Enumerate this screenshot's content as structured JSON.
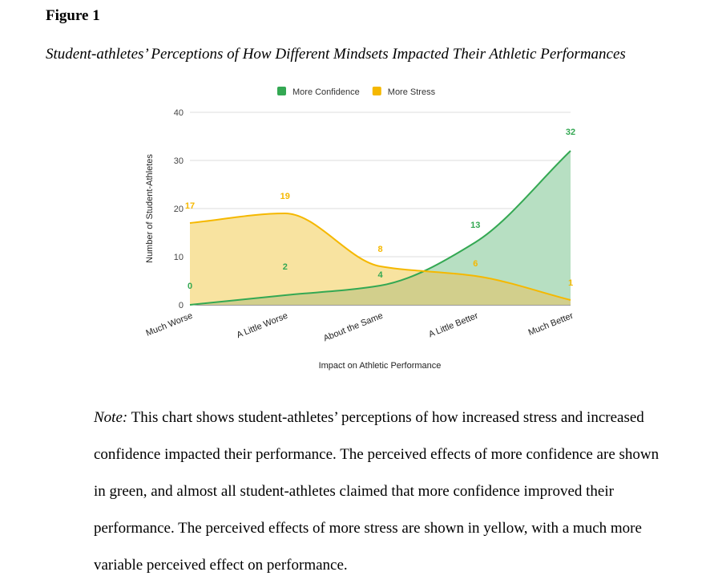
{
  "figure": {
    "label": "Figure 1",
    "title": "Student-athletes’ Perceptions of How Different Mindsets Impacted Their Athletic Performances"
  },
  "chart_data": {
    "type": "area",
    "categories": [
      "Much Worse",
      "A Little Worse",
      "About the Same",
      "A Little Better",
      "Much Better"
    ],
    "series": [
      {
        "name": "More Confidence",
        "values": [
          0,
          2,
          4,
          13,
          32
        ],
        "color": "#34a853",
        "fill": "#b7dfc2"
      },
      {
        "name": "More Stress",
        "values": [
          17,
          19,
          8,
          6,
          1
        ],
        "color": "#f5b800",
        "fill": "#f8e3a0"
      }
    ],
    "xlabel": "Impact on Athletic Performance",
    "ylabel": "Number of Student-Athletes",
    "ylim": [
      0,
      40
    ],
    "yticks": [
      0,
      10,
      20,
      30,
      40
    ],
    "grid": true,
    "legend": "top",
    "overlap_color": "#d2cf8c"
  },
  "note": {
    "label": "Note:",
    "text": " This chart shows student-athletes’ perceptions of how increased stress and increased confidence impacted their performance. The perceived effects of more confidence are shown in green, and almost all student-athletes claimed that more confidence improved their performance. The perceived effects of more stress are shown in yellow, with a much more variable perceived effect on performance."
  }
}
